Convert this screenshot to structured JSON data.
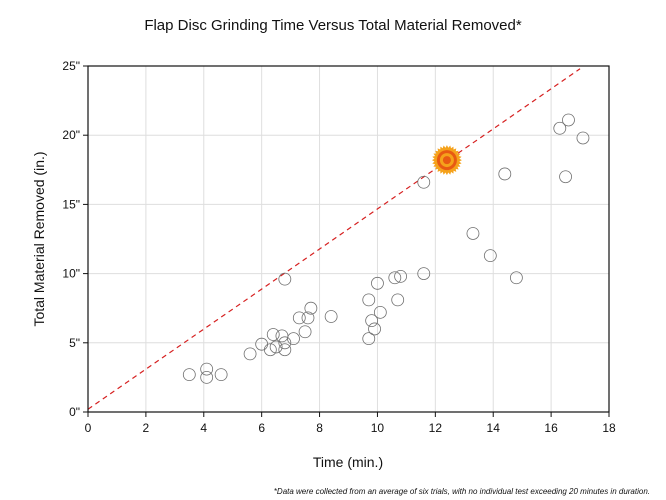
{
  "chart_data": {
    "type": "scatter",
    "title": "Flap Disc Grinding Time Versus Total Material Removed*",
    "xlabel": "Time (min.)",
    "ylabel": "Total Material Removed (in.)",
    "xlim": [
      0,
      18
    ],
    "ylim": [
      0,
      25
    ],
    "x_ticks": [
      "0",
      "2",
      "4",
      "6",
      "8",
      "10",
      "12",
      "14",
      "16",
      "18"
    ],
    "y_ticks": [
      "0\"",
      "5\"",
      "10\"",
      "15\"",
      "20\"",
      "25\""
    ],
    "grid": true,
    "footnote": "*Data were collected from an average of six trials, with no individual test exceeding 20 minutes in duration.",
    "series": [
      {
        "name": "Flap discs",
        "points": [
          [
            3.5,
            2.7
          ],
          [
            4.1,
            3.1
          ],
          [
            4.1,
            2.5
          ],
          [
            4.6,
            2.7
          ],
          [
            5.6,
            4.2
          ],
          [
            6.0,
            4.9
          ],
          [
            6.3,
            4.5
          ],
          [
            6.4,
            5.6
          ],
          [
            6.5,
            4.7
          ],
          [
            6.7,
            5.5
          ],
          [
            6.8,
            4.5
          ],
          [
            6.8,
            5.0
          ],
          [
            6.8,
            9.6
          ],
          [
            7.1,
            5.3
          ],
          [
            7.3,
            6.8
          ],
          [
            7.5,
            5.8
          ],
          [
            7.6,
            6.8
          ],
          [
            7.7,
            7.5
          ],
          [
            8.4,
            6.9
          ],
          [
            9.7,
            5.3
          ],
          [
            9.7,
            8.1
          ],
          [
            9.8,
            6.6
          ],
          [
            9.9,
            6.0
          ],
          [
            10.0,
            9.3
          ],
          [
            10.1,
            7.2
          ],
          [
            10.6,
            9.7
          ],
          [
            10.8,
            9.8
          ],
          [
            10.7,
            8.1
          ],
          [
            11.6,
            10.0
          ],
          [
            11.6,
            16.6
          ],
          [
            13.3,
            12.9
          ],
          [
            13.9,
            11.3
          ],
          [
            14.4,
            17.2
          ],
          [
            14.8,
            9.7
          ],
          [
            16.3,
            20.5
          ],
          [
            16.6,
            21.1
          ],
          [
            16.5,
            17.0
          ],
          [
            17.1,
            19.8
          ]
        ]
      },
      {
        "name": "Highlighted disc",
        "points": [
          [
            12.4,
            18.2
          ]
        ],
        "color": "#f5a21b",
        "accent": "#e85a12"
      },
      {
        "name": "Trend line",
        "line": [
          [
            0,
            0.2
          ],
          [
            17.0,
            24.8
          ]
        ],
        "color": "#d62020"
      }
    ]
  }
}
